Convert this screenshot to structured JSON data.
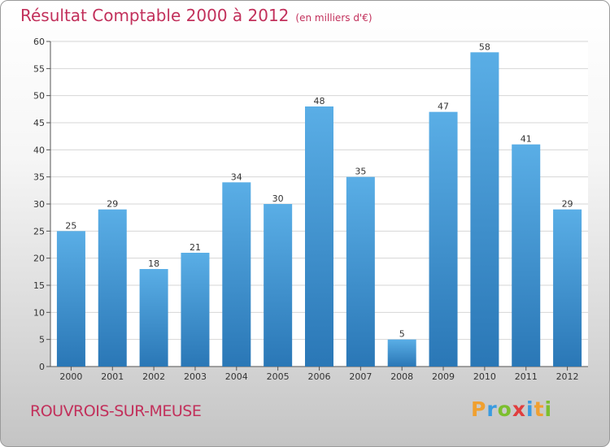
{
  "title": "Résultat Comptable 2000 à 2012",
  "subtitle": "(en milliers d'€)",
  "commune": "ROUVROIS-SUR-MEUSE",
  "logo": {
    "letters": [
      "P",
      "r",
      "o",
      "x",
      "i",
      "t",
      "i"
    ],
    "colors": [
      "#f0a030",
      "#3a9be0",
      "#7cbf2e",
      "#e03e3e",
      "#3a9be0",
      "#f0a030",
      "#7cbf2e"
    ]
  },
  "colors": {
    "bar_dark": "#2a77b6",
    "bar_light": "#5aaee6",
    "title": "#c2305b"
  },
  "chart_data": {
    "type": "bar",
    "categories": [
      "2000",
      "2001",
      "2002",
      "2003",
      "2004",
      "2005",
      "2006",
      "2007",
      "2008",
      "2009",
      "2010",
      "2011",
      "2012"
    ],
    "values": [
      25,
      29,
      18,
      21,
      34,
      30,
      48,
      35,
      5,
      47,
      58,
      41,
      29
    ],
    "ylim": [
      0,
      60
    ],
    "yticks": [
      0,
      5,
      10,
      15,
      20,
      25,
      30,
      35,
      40,
      45,
      50,
      55,
      60
    ],
    "grid": true,
    "xlabel": "",
    "ylabel": ""
  }
}
